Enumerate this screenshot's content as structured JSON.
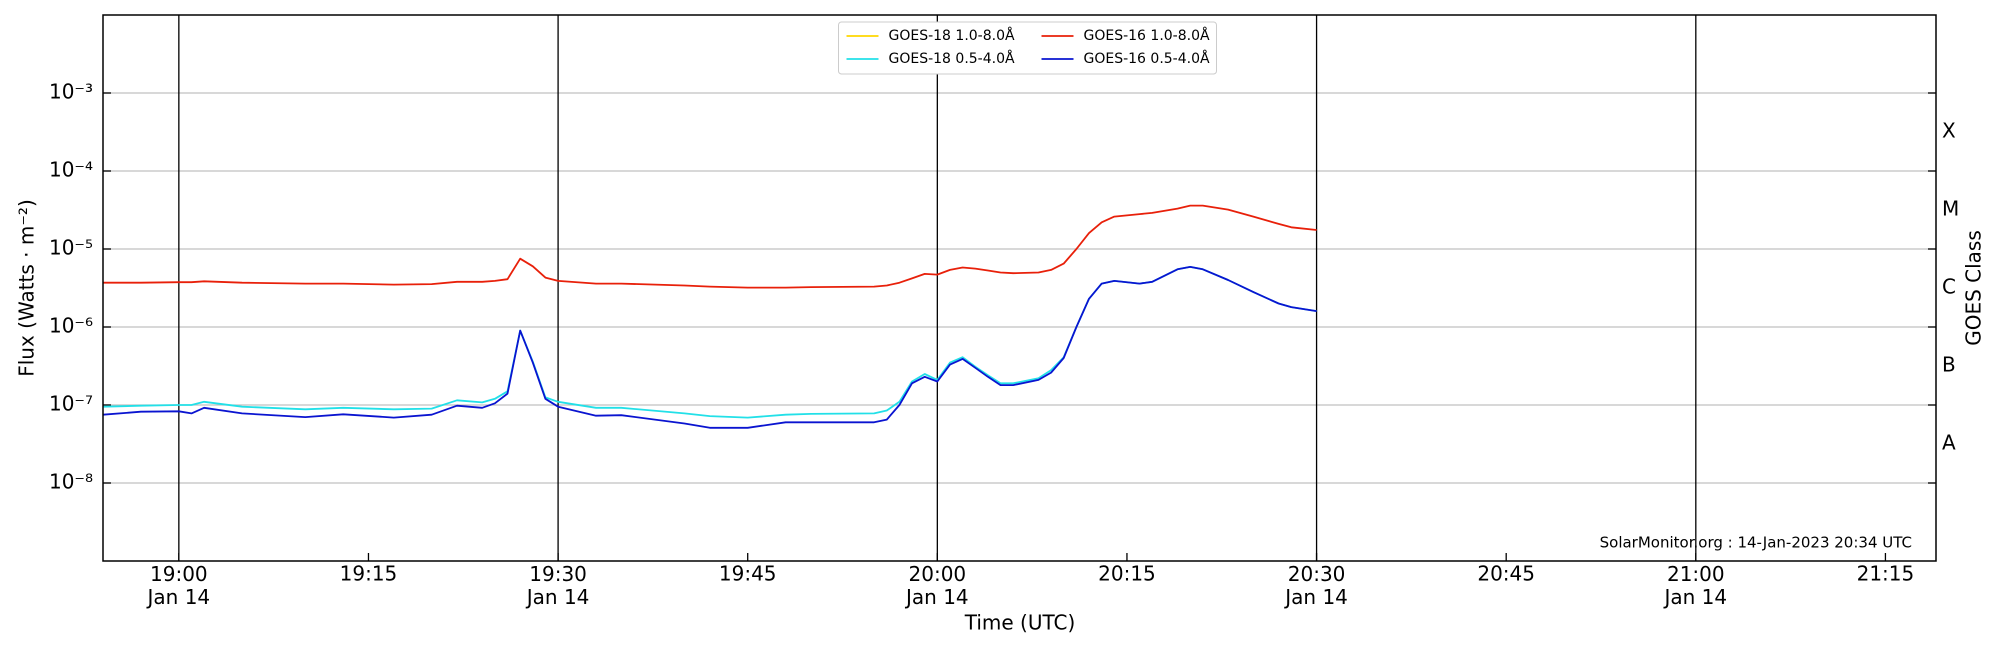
{
  "chart_data": {
    "type": "line",
    "xlabel": "Time (UTC)",
    "ylabel": "Flux (Watts · m⁻²)",
    "y2label": "GOES Class",
    "goes_classes": [
      "A",
      "B",
      "C",
      "M",
      "X"
    ],
    "annotation": "SolarMonitor.org : 14-Jan-2023 20:34 UTC",
    "log_y": true,
    "grid": true,
    "legend_loc": "upper center",
    "legend_columns": 2,
    "xlim": [
      "18:54",
      "21:19"
    ],
    "xticks": [
      {
        "value": "19:00",
        "label": "19:00\nJan 14"
      },
      "19:15",
      {
        "value": "19:30",
        "label": "19:30\nJan 14"
      },
      "19:45",
      {
        "value": "20:00",
        "label": "20:00\nJan 14"
      },
      "20:15",
      {
        "value": "20:30",
        "label": "20:30\nJan 14"
      },
      "20:45",
      {
        "value": "21:00",
        "label": "21:00\nJan 14"
      },
      "21:15"
    ],
    "ylim": [
      1e-09,
      0.01
    ],
    "yticks": [
      {
        "value": 1e-08,
        "label": "10⁻⁸"
      },
      {
        "value": 1e-07,
        "label": "10⁻⁷"
      },
      {
        "value": 1e-06,
        "label": "10⁻⁶"
      },
      {
        "value": 1e-05,
        "label": "10⁻⁵"
      },
      {
        "value": 0.0001,
        "label": "10⁻⁴"
      },
      {
        "value": 0.001,
        "label": "10⁻³"
      }
    ],
    "x": [
      "18:54",
      "18:57",
      "19:00",
      "19:01",
      "19:02",
      "19:05",
      "19:10",
      "19:13",
      "19:17",
      "19:20",
      "19:22",
      "19:24",
      "19:25",
      "19:26",
      "19:27",
      "19:28",
      "19:29",
      "19:30",
      "19:33",
      "19:35",
      "19:40",
      "19:42",
      "19:45",
      "19:48",
      "19:50",
      "19:55",
      "19:56",
      "19:57",
      "19:58",
      "19:59",
      "20:00",
      "20:01",
      "20:02",
      "20:03",
      "20:04",
      "20:05",
      "20:06",
      "20:08",
      "20:09",
      "20:10",
      "20:11",
      "20:12",
      "20:13",
      "20:14",
      "20:16",
      "20:17",
      "20:19",
      "20:20",
      "20:21",
      "20:23",
      "20:25",
      "20:27",
      "20:28",
      "20:30"
    ],
    "series": [
      {
        "name": "GOES-18 1.0-8.0Å",
        "color": "#ffd700",
        "values": [
          null,
          null,
          null,
          null,
          null,
          null,
          null,
          null,
          null,
          null,
          null,
          null,
          null,
          null,
          null,
          null,
          null,
          null,
          null,
          null,
          null,
          null,
          null,
          null,
          null,
          null,
          null,
          null,
          null,
          null,
          null,
          null,
          null,
          null,
          null,
          null,
          null,
          null,
          null,
          null,
          null,
          null,
          null,
          null,
          null,
          null,
          null,
          null,
          null,
          null,
          null,
          null,
          null,
          null
        ]
      },
      {
        "name": "GOES-18 0.5-4.0Å",
        "color": "#22e0e8",
        "values": [
          9.5e-08,
          9.8e-08,
          1e-07,
          1e-07,
          1.1e-07,
          9.5e-08,
          8.8e-08,
          9.2e-08,
          8.8e-08,
          9e-08,
          1.15e-07,
          1.08e-07,
          1.2e-07,
          1.5e-07,
          9e-07,
          3.6e-07,
          1.25e-07,
          1.1e-07,
          9.2e-08,
          9.2e-08,
          7.8e-08,
          7.2e-08,
          6.9e-08,
          7.5e-08,
          7.7e-08,
          7.8e-08,
          8.5e-08,
          1.1e-07,
          2e-07,
          2.5e-07,
          2.1e-07,
          3.5e-07,
          4.1e-07,
          3.1e-07,
          2.4e-07,
          1.9e-07,
          1.9e-07,
          2.2e-07,
          2.8e-07,
          4.1e-07,
          1e-06,
          2.3e-06,
          3.6e-06,
          3.9e-06,
          3.6e-06,
          3.8e-06,
          5.5e-06,
          5.9e-06,
          5.5e-06,
          4e-06,
          2.8e-06,
          2e-06,
          1.8e-06,
          1.6e-06
        ]
      },
      {
        "name": "GOES-16 1.0-8.0Å",
        "color": "#e8200a",
        "values": [
          3.7e-06,
          3.7e-06,
          3.75e-06,
          3.75e-06,
          3.85e-06,
          3.7e-06,
          3.6e-06,
          3.6e-06,
          3.5e-06,
          3.55e-06,
          3.8e-06,
          3.8e-06,
          3.9e-06,
          4.1e-06,
          7.5e-06,
          6e-06,
          4.3e-06,
          3.9e-06,
          3.6e-06,
          3.6e-06,
          3.4e-06,
          3.3e-06,
          3.2e-06,
          3.2e-06,
          3.25e-06,
          3.3e-06,
          3.4e-06,
          3.7e-06,
          4.2e-06,
          4.8e-06,
          4.7e-06,
          5.4e-06,
          5.8e-06,
          5.6e-06,
          5.3e-06,
          5e-06,
          4.9e-06,
          5e-06,
          5.4e-06,
          6.5e-06,
          1e-05,
          1.6e-05,
          2.2e-05,
          2.6e-05,
          2.8e-05,
          2.9e-05,
          3.3e-05,
          3.6e-05,
          3.6e-05,
          3.2e-05,
          2.6e-05,
          2.1e-05,
          1.9e-05,
          1.75e-05
        ]
      },
      {
        "name": "GOES-16 0.5-4.0Å",
        "color": "#0a14d0",
        "values": [
          7.5e-08,
          8.2e-08,
          8.3e-08,
          7.8e-08,
          9.2e-08,
          7.8e-08,
          7e-08,
          7.6e-08,
          6.9e-08,
          7.5e-08,
          9.8e-08,
          9.2e-08,
          1.05e-07,
          1.4e-07,
          9e-07,
          3.5e-07,
          1.2e-07,
          9.5e-08,
          7.3e-08,
          7.4e-08,
          5.8e-08,
          5.1e-08,
          5.1e-08,
          6e-08,
          6e-08,
          6e-08,
          6.5e-08,
          1e-07,
          1.9e-07,
          2.3e-07,
          2e-07,
          3.3e-07,
          3.9e-07,
          3e-07,
          2.3e-07,
          1.8e-07,
          1.8e-07,
          2.1e-07,
          2.6e-07,
          4e-07,
          1e-06,
          2.3e-06,
          3.6e-06,
          3.9e-06,
          3.6e-06,
          3.8e-06,
          5.5e-06,
          5.9e-06,
          5.5e-06,
          4e-06,
          2.8e-06,
          2e-06,
          1.8e-06,
          1.6e-06
        ]
      }
    ]
  }
}
